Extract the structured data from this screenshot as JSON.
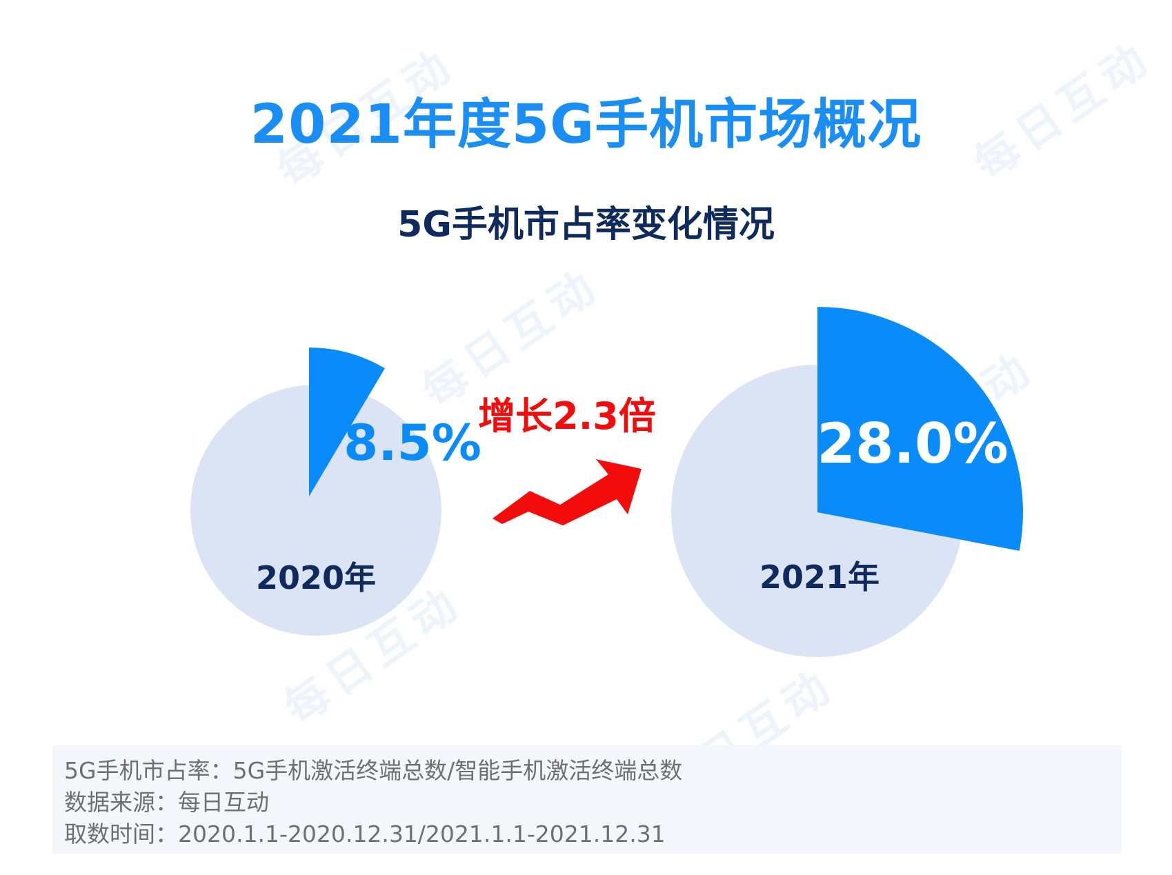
{
  "title": "2021年度5G手机市场概况",
  "subtitle": "5G手机市占率变化情况",
  "watermark_text": "每日互动",
  "colors": {
    "title": "#1a8ef5",
    "subtitle": "#0f2a5c",
    "pie_base": "#dbe4f4",
    "pie_slice": "#0a8bfa",
    "growth": "#f20c0c"
  },
  "chart_data": [
    {
      "type": "pie",
      "year_label": "2020年",
      "value": 8.5,
      "value_label": "8.5%",
      "unit": "%"
    },
    {
      "type": "pie",
      "year_label": "2021年",
      "value": 28.0,
      "value_label": "28.0%",
      "unit": "%"
    }
  ],
  "growth_label": "增长2.3倍",
  "footer": {
    "definition": "5G手机市占率：5G手机激活终端总数/智能手机激活终端总数",
    "source": "数据来源：每日互动",
    "period": "取数时间：2020.1.1-2020.12.31/2021.1.1-2021.12.31"
  }
}
